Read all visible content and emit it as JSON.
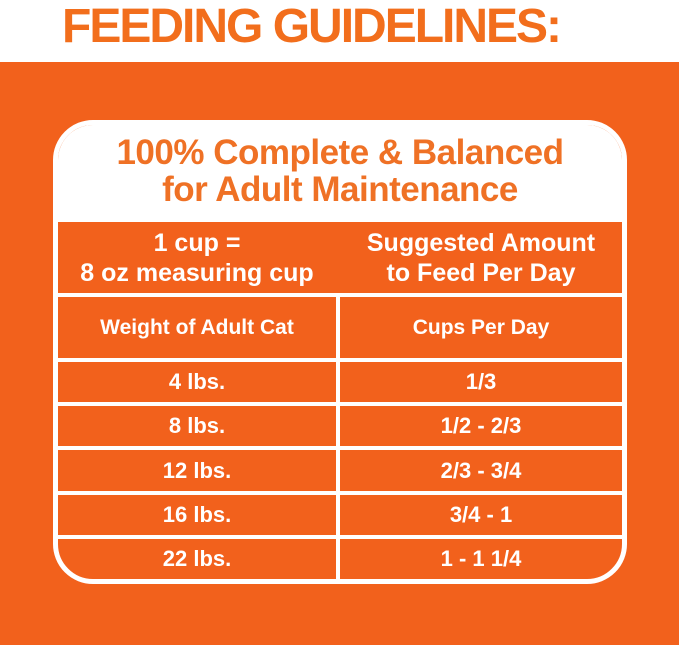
{
  "page": {
    "heading": "FEEDING GUIDELINES:"
  },
  "card": {
    "title_line1": "100% Complete & Balanced",
    "title_line2": "for Adult Maintenance",
    "header": {
      "left_line1": "1 cup =",
      "left_line2": "8 oz measuring cup",
      "right_line1": "Suggested Amount",
      "right_line2": "to Feed Per Day"
    },
    "columns": [
      "Weight of Adult Cat",
      "Cups Per Day"
    ],
    "rows": [
      {
        "weight": "4 lbs.",
        "cups": "1/3"
      },
      {
        "weight": "8 lbs.",
        "cups": "1/2 - 2/3"
      },
      {
        "weight": "12 lbs.",
        "cups": "2/3 - 3/4"
      },
      {
        "weight": "16 lbs.",
        "cups": "3/4 - 1"
      },
      {
        "weight": "22 lbs.",
        "cups": "1 - 1 1/4"
      }
    ]
  },
  "colors": {
    "orange_background": "#F2611C",
    "orange_heading": "#F26E1C",
    "orange_card_title": "#EF7125",
    "white": "#FFFFFF"
  },
  "chart_data": {
    "type": "table",
    "title": "FEEDING GUIDELINES: 100% Complete & Balanced for Adult Maintenance",
    "note": "1 cup = 8 oz measuring cup",
    "columns": [
      "Weight of Adult Cat",
      "Cups Per Day (Suggested Amount to Feed Per Day)"
    ],
    "rows": [
      [
        "4 lbs.",
        "1/3"
      ],
      [
        "8 lbs.",
        "1/2 - 2/3"
      ],
      [
        "12 lbs.",
        "2/3 - 3/4"
      ],
      [
        "16 lbs.",
        "3/4 - 1"
      ],
      [
        "22 lbs.",
        "1 - 1 1/4"
      ]
    ]
  }
}
